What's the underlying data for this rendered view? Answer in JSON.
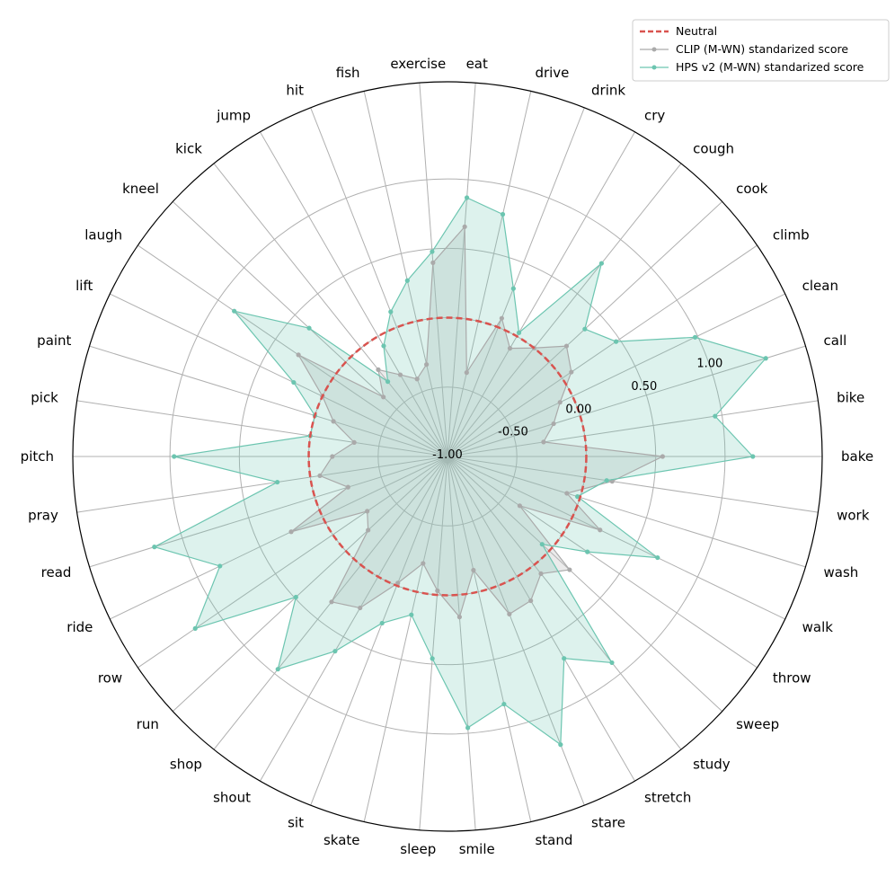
{
  "chart_data": {
    "type": "radar",
    "categories": [
      "bake",
      "bike",
      "call",
      "clean",
      "climb",
      "cook",
      "cough",
      "cry",
      "drink",
      "drive",
      "eat",
      "exercise",
      "fish",
      "hit",
      "jump",
      "kick",
      "kneel",
      "laugh",
      "lift",
      "paint",
      "pick",
      "pitch",
      "pray",
      "read",
      "ride",
      "row",
      "run",
      "shop",
      "shout",
      "sit",
      "skate",
      "sleep",
      "smile",
      "stand",
      "stare",
      "stretch",
      "study",
      "sweep",
      "throw",
      "walk",
      "wash",
      "work"
    ],
    "r_ticks": [
      -1.0,
      -0.5,
      0.0,
      0.5,
      1.0
    ],
    "r_tick_labels": [
      "-1.00",
      "-0.50",
      "0.00",
      "0.50",
      "1.00"
    ],
    "rlim": [
      -1.0,
      1.7
    ],
    "grid": true,
    "legend_position": "top-right",
    "neutral": {
      "name": "Neutral",
      "value": 0.0,
      "color": "#d9534f"
    },
    "series": [
      {
        "name": "CLIP (M-WN) standarized score",
        "color": "#aaaaaa",
        "values": [
          0.55,
          -0.3,
          -0.2,
          -0.1,
          0.08,
          0.17,
          0.0,
          -0.1,
          0.07,
          -0.38,
          0.66,
          0.4,
          -0.32,
          -0.4,
          -0.32,
          -0.2,
          -0.37,
          0.3,
          0.0,
          -0.14,
          -0.32,
          -0.17,
          -0.07,
          -0.25,
          0.25,
          -0.3,
          -0.22,
          0.34,
          0.26,
          -0.02,
          -0.21,
          -0.03,
          0.16,
          -0.16,
          0.22,
          0.2,
          0.08,
          0.2,
          -0.37,
          0.22,
          -0.1,
          0.2
        ]
      },
      {
        "name": "HPS v2 (M-WN) standarized score",
        "color": "#6cc5b0",
        "values": [
          1.2,
          0.95,
          1.4,
          0.98,
          0.47,
          0.35,
          0.78,
          0.03,
          0.3,
          0.79,
          0.87,
          0.48,
          0.3,
          0.12,
          -0.08,
          -0.31,
          0.36,
          0.86,
          0.23,
          0.0,
          0.0,
          0.97,
          0.24,
          1.21,
          0.82,
          1.2,
          0.49,
          0.96,
          0.62,
          0.29,
          0.17,
          0.46,
          0.96,
          0.83,
          1.23,
          0.68,
          0.9,
          -0.07,
          0.22,
          0.68,
          -0.02,
          0.16
        ]
      }
    ]
  }
}
